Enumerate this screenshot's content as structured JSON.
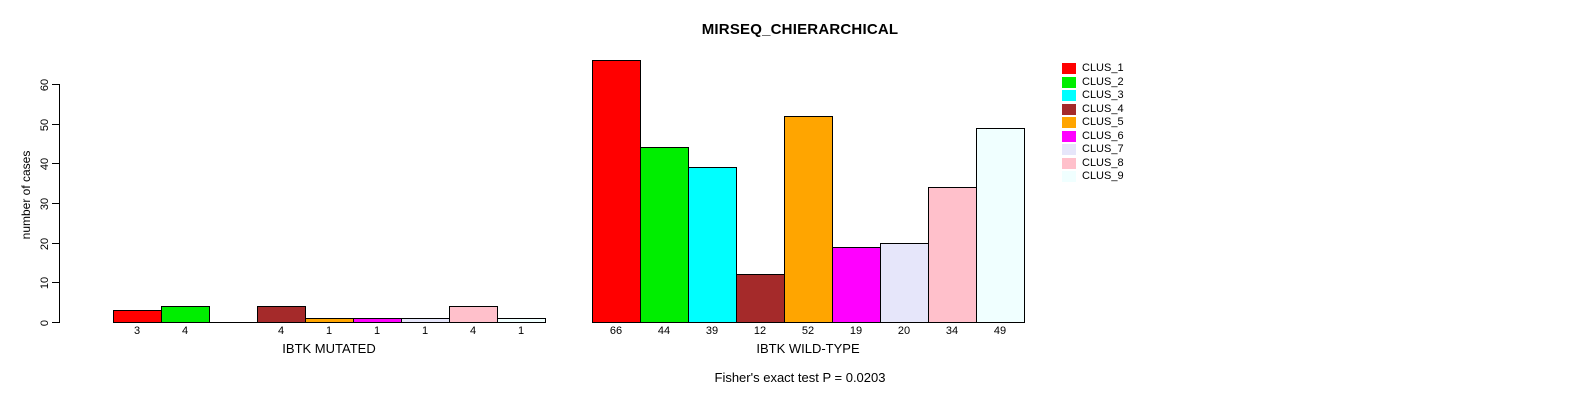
{
  "title": "MIRSEQ_CHIERARCHICAL",
  "footer": "Fisher's exact test P = 0.0203",
  "chart_data": {
    "type": "bar",
    "title": "MIRSEQ_CHIERARCHICAL",
    "subtitle": "Fisher's exact test P = 0.0203",
    "ylabel": "number of cases",
    "xlabel": "",
    "ylim": [
      0,
      60
    ],
    "yticks": [
      "0",
      "10",
      "20",
      "30",
      "40",
      "50",
      "60"
    ],
    "grid": false,
    "legend_position": "right",
    "legend": [
      {
        "label": "CLUS_1",
        "color": "#FF0000"
      },
      {
        "label": "CLUS_2",
        "color": "#00EE00"
      },
      {
        "label": "CLUS_3",
        "color": "#00FFFF"
      },
      {
        "label": "CLUS_4",
        "color": "#A52A2A"
      },
      {
        "label": "CLUS_5",
        "color": "#FFA500"
      },
      {
        "label": "CLUS_6",
        "color": "#FF00FF"
      },
      {
        "label": "CLUS_7",
        "color": "#E6E6FA"
      },
      {
        "label": "CLUS_8",
        "color": "#FFC0CB"
      },
      {
        "label": "CLUS_9",
        "color": "#F0FFFF"
      }
    ],
    "groups": [
      {
        "label": "IBTK MUTATED",
        "values": [
          3,
          4,
          0,
          4,
          1,
          1,
          1,
          4,
          1
        ],
        "bar_labels": [
          "3",
          "4",
          "",
          "4",
          "1",
          "1",
          "1",
          "4",
          "1"
        ]
      },
      {
        "label": "IBTK WILD-TYPE",
        "values": [
          66,
          44,
          39,
          12,
          52,
          19,
          20,
          34,
          49
        ],
        "bar_labels": [
          "66",
          "44",
          "39",
          "12",
          "52",
          "19",
          "20",
          "34",
          "49"
        ]
      }
    ]
  }
}
